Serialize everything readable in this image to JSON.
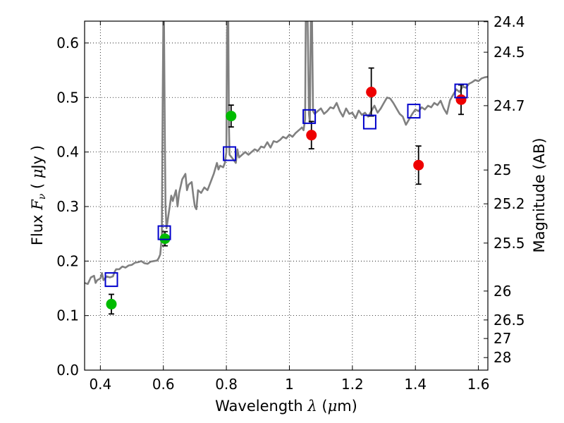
{
  "chart_data": {
    "type": "scatter",
    "xlabel": "Wavelength  λ (μm)",
    "xlabel_parts": {
      "pre": "Wavelength  ",
      "sym": "λ",
      "post": " (",
      "mu": "μ",
      "unit": "m)"
    },
    "ylabel_parts": {
      "pre": "Flux  ",
      "sym": "F",
      "sub": "ν",
      "post": "  (  ",
      "mu": "μ",
      "unit": "Jy  )"
    },
    "ylabel": "Flux  Fν  ( μJy )",
    "ylabel_right": "Magnitude (AB)",
    "xlim": [
      0.35,
      1.63
    ],
    "ylim": [
      0.0,
      0.64
    ],
    "grid": true,
    "x_ticks": [
      0.4,
      0.6,
      0.8,
      1.0,
      1.2,
      1.4,
      1.6
    ],
    "x_tick_labels": [
      "0.4",
      "0.6",
      "0.8",
      "1",
      "1.2",
      "1.4",
      "1.6"
    ],
    "y_ticks": [
      0.0,
      0.1,
      0.2,
      0.3,
      0.4,
      0.5,
      0.6
    ],
    "y_tick_labels": [
      "0.0",
      "0.1",
      "0.2",
      "0.3",
      "0.4",
      "0.5",
      "0.6"
    ],
    "mag_ticks": [
      {
        "label": "24.4",
        "flux": 0.639
      },
      {
        "label": "24.5",
        "flux": 0.583
      },
      {
        "label": "24.7",
        "flux": 0.485
      },
      {
        "label": "25",
        "flux": 0.367
      },
      {
        "label": "25.2",
        "flux": 0.305
      },
      {
        "label": "25.5",
        "flux": 0.233
      },
      {
        "label": "26",
        "flux": 0.145
      },
      {
        "label": "26.5",
        "flux": 0.092
      },
      {
        "label": "27",
        "flux": 0.058
      },
      {
        "label": "28",
        "flux": 0.023
      }
    ],
    "colors": {
      "model": "#808080",
      "green_points": "#00bb00",
      "red_points": "#ee0000",
      "boxes": "#0000cc",
      "errorbars": "#000000"
    },
    "series": [
      {
        "name": "model spectrum",
        "kind": "line",
        "points": [
          [
            0.35,
            0.16
          ],
          [
            0.36,
            0.158
          ],
          [
            0.37,
            0.17
          ],
          [
            0.38,
            0.173
          ],
          [
            0.385,
            0.16
          ],
          [
            0.39,
            0.165
          ],
          [
            0.4,
            0.168
          ],
          [
            0.405,
            0.178
          ],
          [
            0.41,
            0.165
          ],
          [
            0.42,
            0.172
          ],
          [
            0.43,
            0.17
          ],
          [
            0.44,
            0.172
          ],
          [
            0.445,
            0.18
          ],
          [
            0.45,
            0.185
          ],
          [
            0.46,
            0.185
          ],
          [
            0.47,
            0.19
          ],
          [
            0.48,
            0.188
          ],
          [
            0.49,
            0.192
          ],
          [
            0.5,
            0.193
          ],
          [
            0.51,
            0.197
          ],
          [
            0.52,
            0.198
          ],
          [
            0.53,
            0.2
          ],
          [
            0.54,
            0.196
          ],
          [
            0.55,
            0.195
          ],
          [
            0.56,
            0.199
          ],
          [
            0.57,
            0.2
          ],
          [
            0.58,
            0.201
          ],
          [
            0.585,
            0.205
          ],
          [
            0.59,
            0.212
          ],
          [
            0.595,
            0.245
          ],
          [
            0.598,
            0.5
          ],
          [
            0.6,
            0.64
          ],
          [
            0.602,
            0.64
          ],
          [
            0.605,
            0.4
          ],
          [
            0.607,
            0.3
          ],
          [
            0.61,
            0.26
          ],
          [
            0.62,
            0.3
          ],
          [
            0.625,
            0.32
          ],
          [
            0.63,
            0.31
          ],
          [
            0.64,
            0.33
          ],
          [
            0.645,
            0.3
          ],
          [
            0.65,
            0.325
          ],
          [
            0.66,
            0.35
          ],
          [
            0.67,
            0.36
          ],
          [
            0.675,
            0.33
          ],
          [
            0.68,
            0.34
          ],
          [
            0.69,
            0.345
          ],
          [
            0.695,
            0.32
          ],
          [
            0.7,
            0.3
          ],
          [
            0.705,
            0.295
          ],
          [
            0.71,
            0.33
          ],
          [
            0.72,
            0.325
          ],
          [
            0.73,
            0.335
          ],
          [
            0.74,
            0.33
          ],
          [
            0.75,
            0.345
          ],
          [
            0.76,
            0.36
          ],
          [
            0.77,
            0.38
          ],
          [
            0.775,
            0.368
          ],
          [
            0.78,
            0.375
          ],
          [
            0.79,
            0.372
          ],
          [
            0.795,
            0.38
          ],
          [
            0.8,
            0.4
          ],
          [
            0.802,
            0.62
          ],
          [
            0.804,
            0.64
          ],
          [
            0.806,
            0.64
          ],
          [
            0.808,
            0.45
          ],
          [
            0.81,
            0.395
          ],
          [
            0.82,
            0.388
          ],
          [
            0.83,
            0.38
          ],
          [
            0.835,
            0.405
          ],
          [
            0.84,
            0.39
          ],
          [
            0.85,
            0.395
          ],
          [
            0.86,
            0.4
          ],
          [
            0.87,
            0.395
          ],
          [
            0.88,
            0.4
          ],
          [
            0.89,
            0.405
          ],
          [
            0.9,
            0.402
          ],
          [
            0.91,
            0.41
          ],
          [
            0.92,
            0.408
          ],
          [
            0.93,
            0.418
          ],
          [
            0.94,
            0.408
          ],
          [
            0.95,
            0.42
          ],
          [
            0.96,
            0.418
          ],
          [
            0.97,
            0.422
          ],
          [
            0.98,
            0.428
          ],
          [
            0.99,
            0.425
          ],
          [
            1.0,
            0.432
          ],
          [
            1.01,
            0.428
          ],
          [
            1.02,
            0.435
          ],
          [
            1.03,
            0.44
          ],
          [
            1.04,
            0.445
          ],
          [
            1.045,
            0.44
          ],
          [
            1.05,
            0.46
          ],
          [
            1.052,
            0.64
          ],
          [
            1.058,
            0.64
          ],
          [
            1.062,
            0.47
          ],
          [
            1.065,
            0.455
          ],
          [
            1.068,
            0.64
          ],
          [
            1.072,
            0.64
          ],
          [
            1.075,
            0.475
          ],
          [
            1.08,
            0.47
          ],
          [
            1.09,
            0.475
          ],
          [
            1.1,
            0.48
          ],
          [
            1.11,
            0.47
          ],
          [
            1.12,
            0.475
          ],
          [
            1.13,
            0.482
          ],
          [
            1.14,
            0.48
          ],
          [
            1.15,
            0.49
          ],
          [
            1.16,
            0.475
          ],
          [
            1.17,
            0.465
          ],
          [
            1.18,
            0.48
          ],
          [
            1.19,
            0.47
          ],
          [
            1.2,
            0.472
          ],
          [
            1.21,
            0.462
          ],
          [
            1.22,
            0.476
          ],
          [
            1.23,
            0.468
          ],
          [
            1.24,
            0.472
          ],
          [
            1.25,
            0.465
          ],
          [
            1.26,
            0.475
          ],
          [
            1.27,
            0.485
          ],
          [
            1.28,
            0.472
          ],
          [
            1.29,
            0.48
          ],
          [
            1.3,
            0.49
          ],
          [
            1.31,
            0.5
          ],
          [
            1.32,
            0.498
          ],
          [
            1.33,
            0.49
          ],
          [
            1.34,
            0.48
          ],
          [
            1.35,
            0.47
          ],
          [
            1.36,
            0.465
          ],
          [
            1.37,
            0.45
          ],
          [
            1.38,
            0.46
          ],
          [
            1.39,
            0.47
          ],
          [
            1.4,
            0.478
          ],
          [
            1.41,
            0.475
          ],
          [
            1.42,
            0.482
          ],
          [
            1.43,
            0.478
          ],
          [
            1.44,
            0.485
          ],
          [
            1.45,
            0.482
          ],
          [
            1.46,
            0.49
          ],
          [
            1.47,
            0.486
          ],
          [
            1.48,
            0.494
          ],
          [
            1.49,
            0.48
          ],
          [
            1.5,
            0.47
          ],
          [
            1.51,
            0.495
          ],
          [
            1.52,
            0.505
          ],
          [
            1.53,
            0.515
          ],
          [
            1.54,
            0.51
          ],
          [
            1.55,
            0.52
          ],
          [
            1.56,
            0.518
          ],
          [
            1.57,
            0.525
          ],
          [
            1.58,
            0.528
          ],
          [
            1.59,
            0.532
          ],
          [
            1.6,
            0.53
          ],
          [
            1.61,
            0.535
          ],
          [
            1.62,
            0.537
          ],
          [
            1.63,
            0.538
          ]
        ]
      },
      {
        "name": "green points",
        "kind": "points",
        "color_key": "green_points",
        "points": [
          {
            "x": 0.435,
            "y": 0.121,
            "err": 0.018
          },
          {
            "x": 0.605,
            "y": 0.241,
            "err": 0.013
          },
          {
            "x": 0.815,
            "y": 0.466,
            "err": 0.02
          }
        ]
      },
      {
        "name": "red points",
        "kind": "points",
        "color_key": "red_points",
        "points": [
          {
            "x": 1.07,
            "y": 0.431,
            "err": 0.025
          },
          {
            "x": 1.26,
            "y": 0.51,
            "err": 0.044
          },
          {
            "x": 1.41,
            "y": 0.376,
            "err": 0.035
          },
          {
            "x": 1.545,
            "y": 0.496,
            "err": 0.027
          }
        ]
      },
      {
        "name": "model bandpass flux",
        "kind": "boxes",
        "points": [
          {
            "x": 0.435,
            "y": 0.166
          },
          {
            "x": 0.603,
            "y": 0.252
          },
          {
            "x": 0.81,
            "y": 0.397
          },
          {
            "x": 1.063,
            "y": 0.465
          },
          {
            "x": 1.255,
            "y": 0.455
          },
          {
            "x": 1.395,
            "y": 0.475
          },
          {
            "x": 1.545,
            "y": 0.512
          }
        ]
      }
    ]
  }
}
